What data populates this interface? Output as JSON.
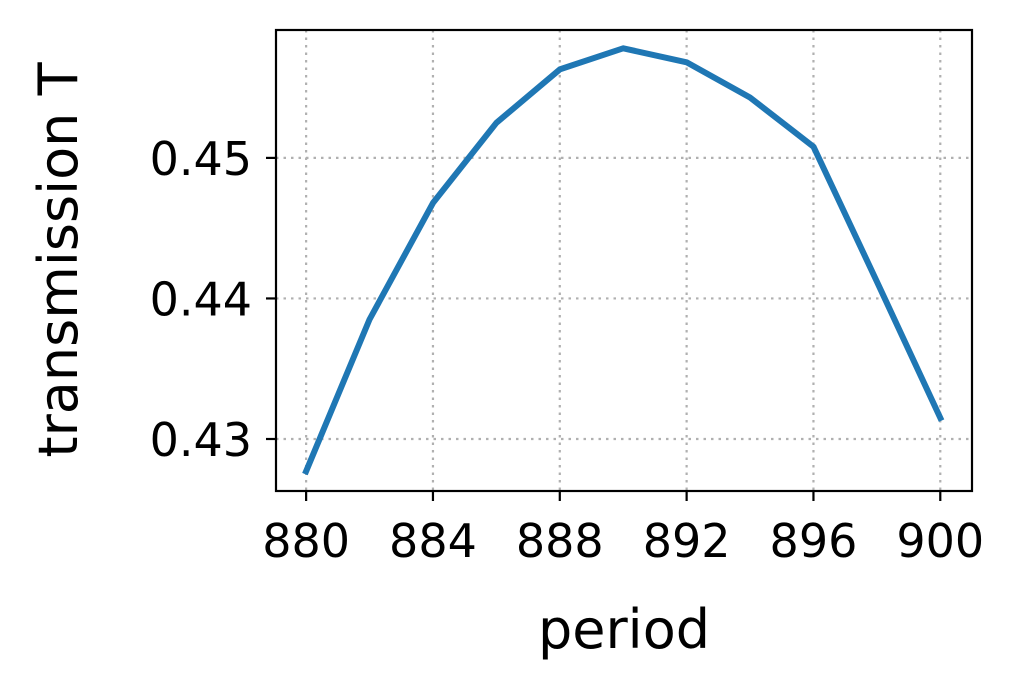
{
  "chart_data": {
    "type": "line",
    "xlabel": "period",
    "ylabel": "transmission T",
    "x_ticks": [
      880,
      884,
      888,
      892,
      896,
      900
    ],
    "x_tick_labels": [
      "880",
      "884",
      "888",
      "892",
      "896",
      "900"
    ],
    "y_ticks": [
      0.43,
      0.44,
      0.45
    ],
    "y_tick_labels": [
      "0.43",
      "0.44",
      "0.45"
    ],
    "xlim": [
      879.05,
      901.0
    ],
    "ylim": [
      0.4263,
      0.4591
    ],
    "grid": true,
    "series": [
      {
        "color": "#1f77b4",
        "x": [
          880,
          882,
          884,
          886,
          888,
          890,
          892,
          894,
          896,
          898,
          900
        ],
        "y": [
          0.4277,
          0.4385,
          0.4468,
          0.4525,
          0.4563,
          0.4578,
          0.4568,
          0.4543,
          0.4508,
          0.4412,
          0.4315
        ]
      }
    ]
  }
}
